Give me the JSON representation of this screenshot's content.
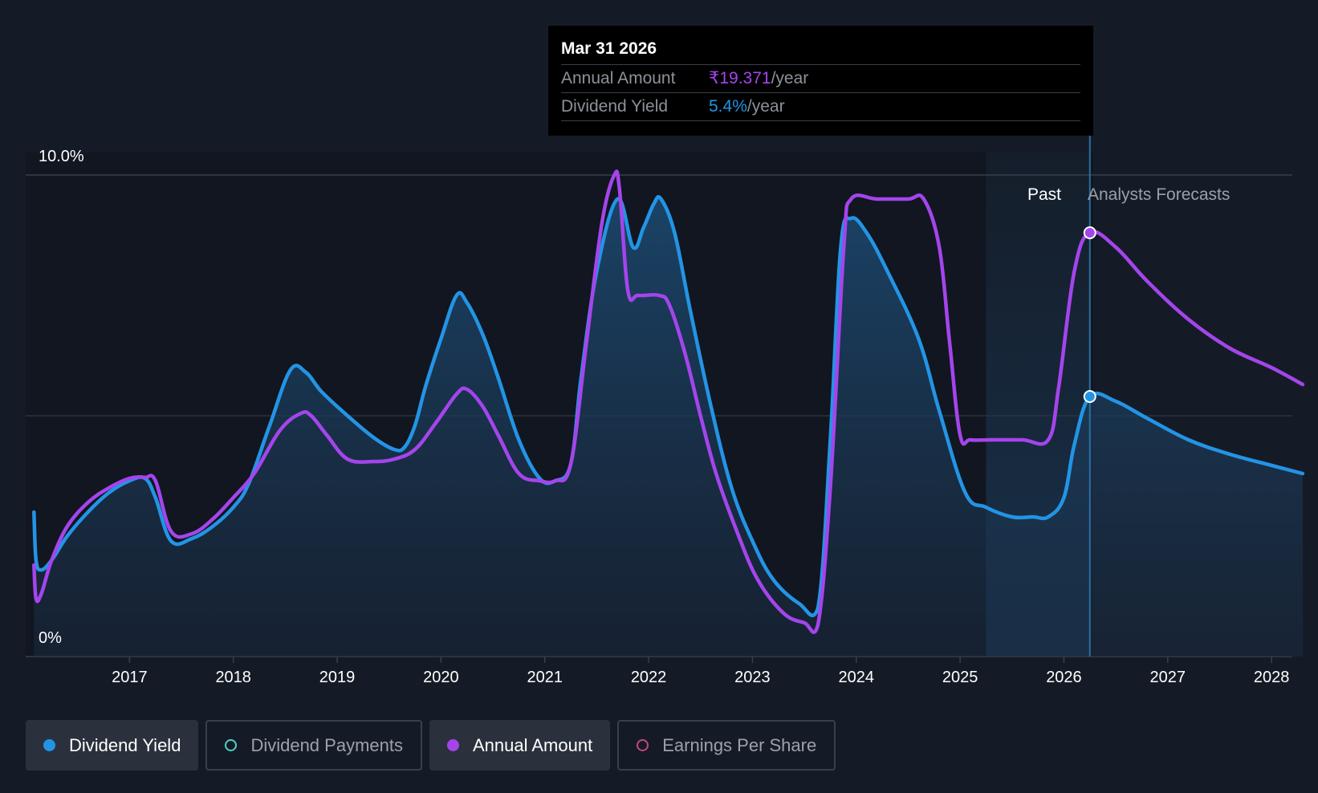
{
  "colors": {
    "background": "#151b26",
    "dividend_yield": "#2394e5",
    "annual_amount": "#a445ec",
    "dividend_payments": "#4fd1c5",
    "earnings_per_share": "#c2477f"
  },
  "tooltip": {
    "date": "Mar 31 2026",
    "rows": [
      {
        "label": "Annual Amount",
        "value": "₹19.371",
        "unit": "/year"
      },
      {
        "label": "Dividend Yield",
        "value": "5.4%",
        "unit": "/year"
      }
    ]
  },
  "regions": {
    "past_label": "Past",
    "forecast_label": "Analysts Forecasts"
  },
  "legend": [
    {
      "label": "Dividend Yield",
      "state": "active",
      "icon": "filled-dot-icon"
    },
    {
      "label": "Dividend Payments",
      "state": "inactive",
      "icon": "hollow-dot-icon"
    },
    {
      "label": "Annual Amount",
      "state": "active",
      "icon": "filled-dot-icon"
    },
    {
      "label": "Earnings Per Share",
      "state": "inactive",
      "icon": "hollow-dot-icon"
    }
  ],
  "chart_data": {
    "type": "area",
    "y_tick_labels": [
      "10.0%",
      "0%"
    ],
    "ylim": [
      0,
      10
    ],
    "xlim": [
      2016.0,
      2028.2
    ],
    "x_ticks": [
      2017,
      2018,
      2019,
      2020,
      2021,
      2022,
      2023,
      2024,
      2025,
      2026,
      2027,
      2028
    ],
    "x_tick_labels": [
      "2017",
      "2018",
      "2019",
      "2020",
      "2021",
      "2022",
      "2023",
      "2024",
      "2025",
      "2026",
      "2027",
      "2028"
    ],
    "grid": true,
    "past_forecast_boundary": 2026.25,
    "shaded_band": [
      2025.25,
      2026.25
    ],
    "series": [
      {
        "name": "Dividend Yield",
        "x": [
          2016.08,
          2016.1,
          2016.15,
          2016.25,
          2016.4,
          2016.6,
          2016.8,
          2017.0,
          2017.15,
          2017.25,
          2017.4,
          2017.6,
          2017.8,
          2018.0,
          2018.15,
          2018.35,
          2018.55,
          2018.7,
          2018.85,
          2019.1,
          2019.35,
          2019.55,
          2019.65,
          2019.75,
          2019.85,
          2020.0,
          2020.15,
          2020.25,
          2020.4,
          2020.55,
          2020.75,
          2020.95,
          2021.1,
          2021.25,
          2021.35,
          2021.5,
          2021.7,
          2021.85,
          2021.95,
          2022.05,
          2022.12,
          2022.25,
          2022.4,
          2022.6,
          2022.8,
          2023.0,
          2023.2,
          2023.45,
          2023.63,
          2023.75,
          2023.85,
          2023.95,
          2024.1,
          2024.3,
          2024.6,
          2024.8,
          2025.05,
          2025.25,
          2025.5,
          2025.7,
          2025.85,
          2026.0,
          2026.1,
          2026.25,
          2026.5,
          2026.8,
          2027.2,
          2027.6,
          2028.0,
          2028.3
        ],
        "values": [
          3.0,
          2.0,
          1.8,
          2.0,
          2.5,
          3.0,
          3.4,
          3.65,
          3.7,
          3.3,
          2.4,
          2.45,
          2.7,
          3.1,
          3.6,
          4.8,
          5.95,
          5.9,
          5.5,
          5.0,
          4.55,
          4.3,
          4.35,
          4.8,
          5.6,
          6.6,
          7.5,
          7.35,
          6.7,
          5.8,
          4.5,
          3.7,
          3.65,
          4.0,
          5.8,
          8.0,
          9.5,
          8.5,
          8.9,
          9.4,
          9.5,
          8.8,
          7.2,
          5.2,
          3.5,
          2.4,
          1.6,
          1.1,
          1.0,
          4.5,
          8.5,
          9.1,
          8.8,
          8.0,
          6.6,
          5.1,
          3.4,
          3.1,
          2.9,
          2.9,
          2.9,
          3.3,
          4.4,
          5.4,
          5.3,
          4.95,
          4.5,
          4.2,
          3.97,
          3.8
        ]
      },
      {
        "name": "Annual Amount",
        "x": [
          2016.08,
          2016.1,
          2016.15,
          2016.25,
          2016.4,
          2016.6,
          2016.8,
          2017.0,
          2017.15,
          2017.25,
          2017.4,
          2017.6,
          2017.8,
          2018.0,
          2018.2,
          2018.45,
          2018.65,
          2018.75,
          2018.9,
          2019.1,
          2019.35,
          2019.55,
          2019.75,
          2019.95,
          2020.15,
          2020.25,
          2020.4,
          2020.55,
          2020.75,
          2020.95,
          2021.1,
          2021.25,
          2021.4,
          2021.55,
          2021.67,
          2021.72,
          2021.8,
          2021.9,
          2022.1,
          2022.2,
          2022.35,
          2022.5,
          2022.65,
          2022.85,
          2023.05,
          2023.3,
          2023.5,
          2023.63,
          2023.75,
          2023.88,
          2023.95,
          2024.2,
          2024.5,
          2024.65,
          2024.8,
          2024.9,
          2025.0,
          2025.1,
          2025.3,
          2025.6,
          2025.85,
          2025.95,
          2026.1,
          2026.25,
          2026.5,
          2026.8,
          2027.2,
          2027.6,
          2028.0,
          2028.3
        ],
        "values": [
          1.9,
          1.2,
          1.3,
          2.0,
          2.7,
          3.2,
          3.5,
          3.7,
          3.72,
          3.65,
          2.6,
          2.55,
          2.85,
          3.3,
          3.8,
          4.7,
          5.05,
          5.0,
          4.6,
          4.1,
          4.05,
          4.1,
          4.3,
          4.85,
          5.45,
          5.55,
          5.2,
          4.6,
          3.8,
          3.65,
          3.65,
          4.0,
          6.5,
          9.0,
          10.0,
          9.7,
          7.6,
          7.5,
          7.5,
          7.3,
          6.3,
          5.0,
          3.8,
          2.6,
          1.6,
          0.9,
          0.7,
          0.65,
          3.5,
          8.5,
          9.5,
          9.5,
          9.5,
          9.5,
          8.5,
          6.5,
          4.6,
          4.5,
          4.5,
          4.5,
          4.5,
          5.6,
          8.0,
          8.8,
          8.5,
          7.8,
          7.0,
          6.4,
          6.0,
          5.65
        ]
      }
    ]
  }
}
